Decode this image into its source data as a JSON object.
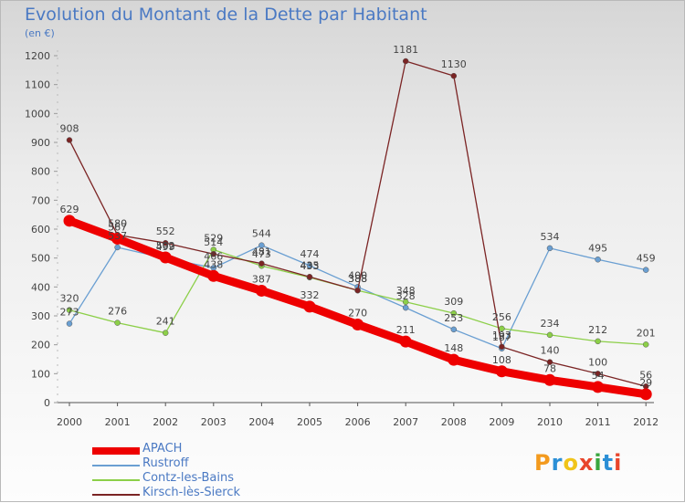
{
  "title": "Evolution du Montant de la Dette par Habitant",
  "unit": "(en €)",
  "brand": "Proxiti",
  "brand_colors": [
    "#f39a1e",
    "#2b8fd6",
    "#f0c419",
    "#e8452c",
    "#3aa63f",
    "#2b8fd6",
    "#e8452c"
  ],
  "chart_data": {
    "type": "line",
    "title": "Evolution du Montant de la Dette par Habitant",
    "subtitle": "(en €)",
    "xlabel": "",
    "ylabel": "",
    "categories": [
      "2000",
      "2001",
      "2002",
      "2003",
      "2004",
      "2005",
      "2006",
      "2007",
      "2008",
      "2009",
      "2010",
      "2011",
      "2012"
    ],
    "ylim": [
      0,
      1200
    ],
    "yticks": [
      0,
      100,
      200,
      300,
      400,
      500,
      600,
      700,
      800,
      900,
      1000,
      1100,
      1200
    ],
    "grid": false,
    "legend_position": "bottom-left",
    "series": [
      {
        "name": "APACH",
        "color": "#ee0000",
        "values": [
          629,
          567,
          502,
          438,
          387,
          332,
          270,
          211,
          148,
          108,
          78,
          54,
          29
        ]
      },
      {
        "name": "Rustroff",
        "color": "#6a9fd2",
        "values": [
          273,
          537,
          499,
          466,
          544,
          474,
          400,
          328,
          253,
          187,
          534,
          495,
          459
        ]
      },
      {
        "name": "Contz-les-Bains",
        "color": "#8ccf48",
        "values": [
          320,
          276,
          241,
          529,
          473,
          433,
          388,
          348,
          309,
          256,
          234,
          212,
          201
        ]
      },
      {
        "name": "Kirsch-lès-Sierck",
        "color": "#7b2424",
        "values": [
          908,
          580,
          552,
          514,
          481,
          435,
          388,
          1181,
          1130,
          193,
          140,
          100,
          56
        ]
      }
    ]
  }
}
